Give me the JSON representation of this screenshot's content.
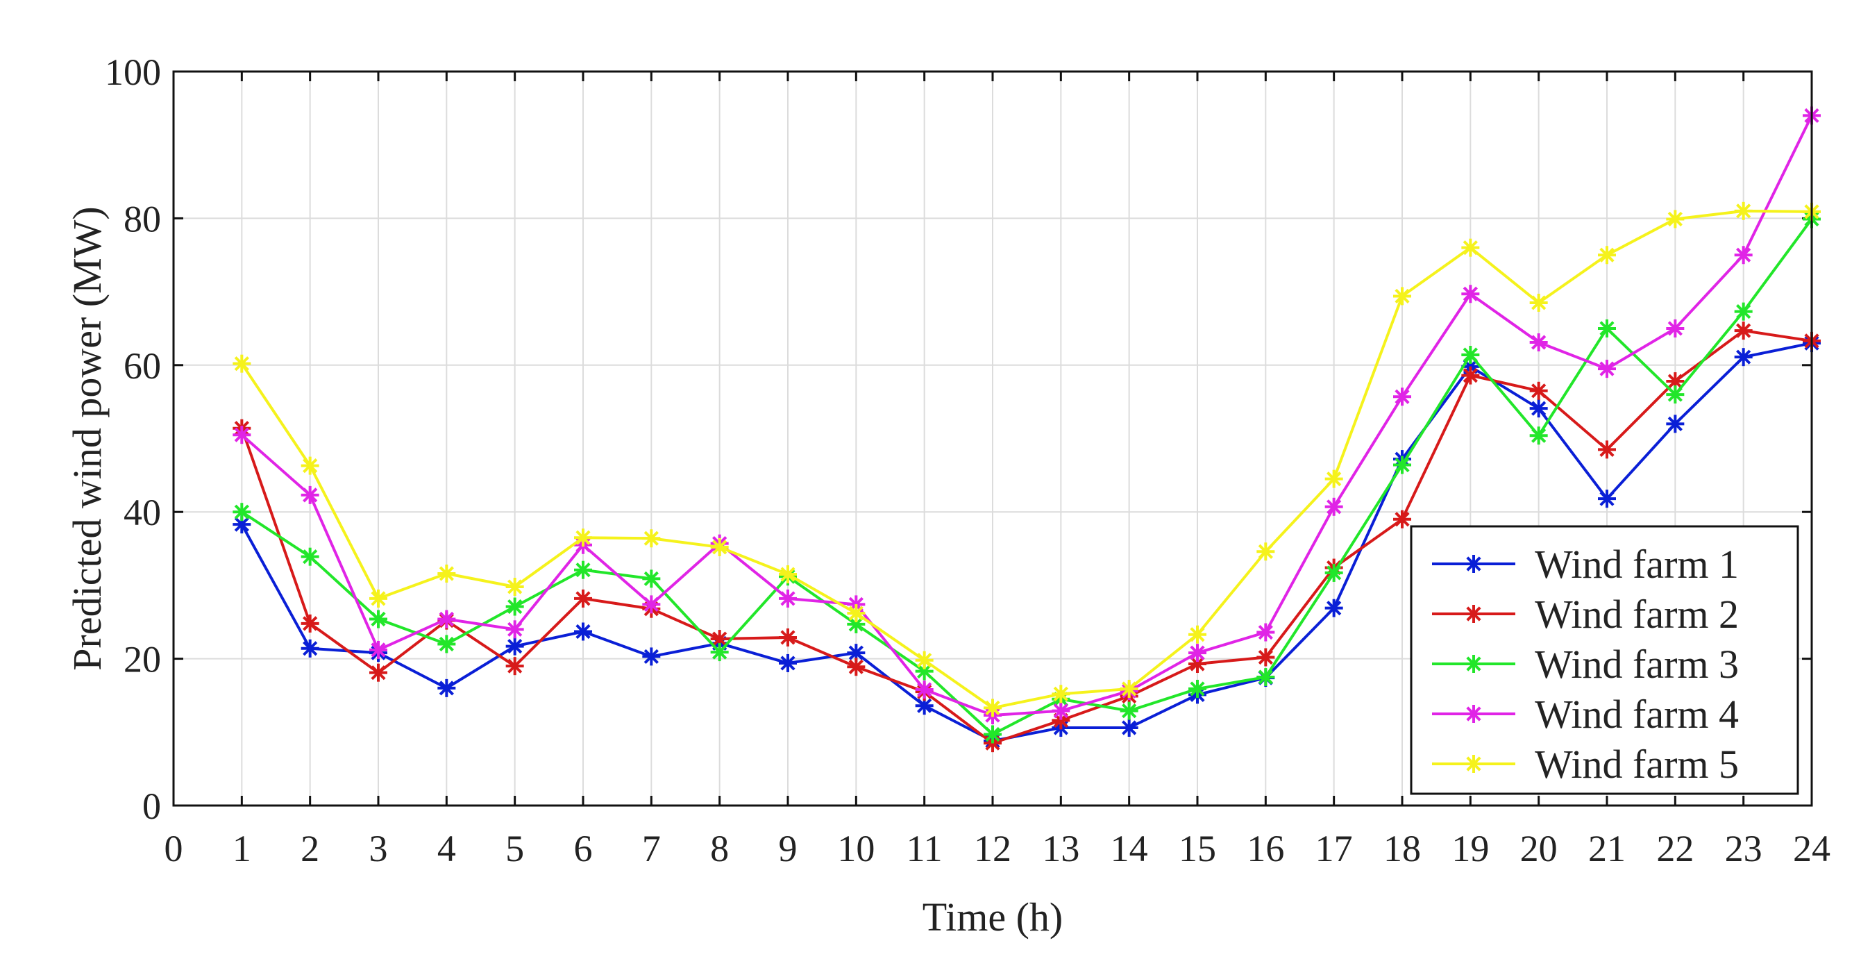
{
  "chart_data": {
    "type": "line",
    "title": "",
    "xlabel": "Time (h)",
    "ylabel": "Predicted wind power (MW)",
    "xlim": [
      0,
      24
    ],
    "ylim": [
      0,
      100
    ],
    "xticks": [
      0,
      1,
      2,
      3,
      4,
      5,
      6,
      7,
      8,
      9,
      10,
      11,
      12,
      13,
      14,
      15,
      16,
      17,
      18,
      19,
      20,
      21,
      22,
      23,
      24
    ],
    "yticks": [
      0,
      20,
      40,
      60,
      80,
      100
    ],
    "grid": true,
    "legend_position": "bottom-right",
    "marker": "*",
    "x": [
      1,
      2,
      3,
      4,
      5,
      6,
      7,
      8,
      9,
      10,
      11,
      12,
      13,
      14,
      15,
      16,
      17,
      18,
      19,
      20,
      21,
      22,
      23,
      24
    ],
    "series": [
      {
        "name": "Wind farm 1",
        "color": "#0a1fd6",
        "values": [
          38.3,
          21.4,
          20.8,
          16.0,
          21.7,
          23.7,
          20.3,
          22.1,
          19.4,
          20.8,
          13.6,
          8.8,
          10.6,
          10.6,
          15.1,
          17.4,
          26.9,
          47.2,
          59.8,
          54.1,
          41.8,
          52.0,
          61.1,
          63.0
        ]
      },
      {
        "name": "Wind farm 2",
        "color": "#d71a1a",
        "values": [
          51.4,
          24.8,
          18.1,
          25.2,
          19.0,
          28.2,
          26.8,
          22.7,
          22.9,
          18.9,
          15.5,
          8.5,
          11.6,
          14.9,
          19.3,
          20.2,
          32.4,
          39.0,
          58.6,
          56.5,
          48.5,
          57.8,
          64.7,
          63.3
        ]
      },
      {
        "name": "Wind farm 3",
        "color": "#22e62a",
        "values": [
          40.0,
          33.9,
          25.4,
          22.0,
          27.1,
          32.1,
          30.9,
          20.9,
          31.2,
          24.7,
          18.3,
          9.7,
          14.5,
          12.9,
          15.9,
          17.5,
          31.7,
          46.4,
          61.4,
          50.4,
          65.0,
          56.0,
          67.3,
          79.9
        ]
      },
      {
        "name": "Wind farm 4",
        "color": "#e024e6",
        "values": [
          50.5,
          42.3,
          21.2,
          25.4,
          24.0,
          35.5,
          27.4,
          35.7,
          28.2,
          27.4,
          15.8,
          12.3,
          12.9,
          15.6,
          20.8,
          23.6,
          40.7,
          55.7,
          69.7,
          63.1,
          59.5,
          65.0,
          75.0,
          94.0
        ]
      },
      {
        "name": "Wind farm 5",
        "color": "#f5f21c",
        "values": [
          60.2,
          46.3,
          28.2,
          31.6,
          29.8,
          36.5,
          36.4,
          35.2,
          31.5,
          26.2,
          19.8,
          13.3,
          15.2,
          15.9,
          23.3,
          34.6,
          44.5,
          69.4,
          76.0,
          68.5,
          75.0,
          79.9,
          81.0,
          80.9
        ]
      }
    ]
  }
}
